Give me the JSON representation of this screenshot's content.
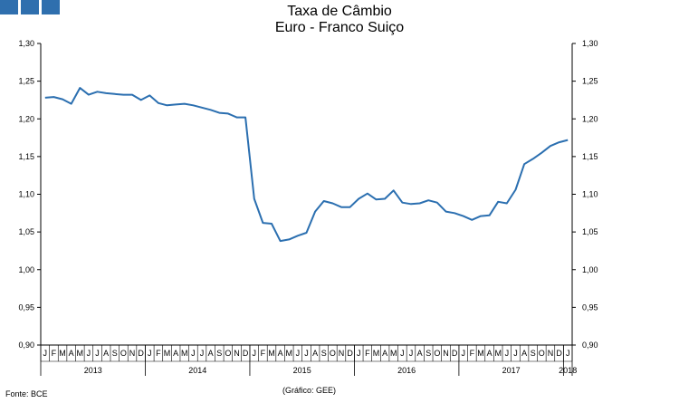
{
  "logo": "bce-logo-squares",
  "title": "Taxa de Câmbio",
  "subtitle": "Euro - Franco Suiço",
  "source": "Fonte: BCE",
  "credit": "(Gráfico: GEE)",
  "colors": {
    "line": "#2b6fb0",
    "logo": "#2f6fae"
  },
  "chart_data": {
    "type": "line",
    "title": "Taxa de Câmbio",
    "subtitle": "Euro - Franco Suiço",
    "ylim": [
      0.9,
      1.3
    ],
    "y_ticks": [
      "0,90",
      "0,95",
      "1,00",
      "1,05",
      "1,10",
      "1,15",
      "1,20",
      "1,25",
      "1,30"
    ],
    "y_tick_values": [
      0.9,
      0.95,
      1.0,
      1.05,
      1.1,
      1.15,
      1.2,
      1.25,
      1.3
    ],
    "month_labels": [
      "J",
      "F",
      "M",
      "A",
      "M",
      "J",
      "J",
      "A",
      "S",
      "O",
      "N",
      "D",
      "J",
      "F",
      "M",
      "A",
      "M",
      "J",
      "J",
      "A",
      "S",
      "O",
      "N",
      "D",
      "J",
      "F",
      "M",
      "A",
      "M",
      "J",
      "J",
      "A",
      "S",
      "O",
      "N",
      "D",
      "J",
      "F",
      "M",
      "A",
      "M",
      "J",
      "J",
      "A",
      "S",
      "O",
      "N",
      "D",
      "J",
      "F",
      "M",
      "A",
      "M",
      "J",
      "J",
      "A",
      "S",
      "O",
      "N",
      "D",
      "J"
    ],
    "year_labels": [
      "2013",
      "2014",
      "2015",
      "2016",
      "2017",
      "2018"
    ],
    "grid": false,
    "series": [
      {
        "values": [
          1.228,
          1.229,
          1.226,
          1.22,
          1.241,
          1.232,
          1.236,
          1.234,
          1.233,
          1.232,
          1.232,
          1.225,
          1.231,
          1.221,
          1.218,
          1.219,
          1.22,
          1.218,
          1.215,
          1.212,
          1.208,
          1.207,
          1.202,
          1.202,
          1.094,
          1.062,
          1.061,
          1.038,
          1.04,
          1.045,
          1.049,
          1.077,
          1.091,
          1.088,
          1.083,
          1.083,
          1.094,
          1.101,
          1.093,
          1.094,
          1.105,
          1.089,
          1.087,
          1.088,
          1.092,
          1.089,
          1.077,
          1.075,
          1.071,
          1.066,
          1.071,
          1.072,
          1.09,
          1.088,
          1.106,
          1.14,
          1.147,
          1.155,
          1.164,
          1.169,
          1.172
        ]
      }
    ]
  }
}
